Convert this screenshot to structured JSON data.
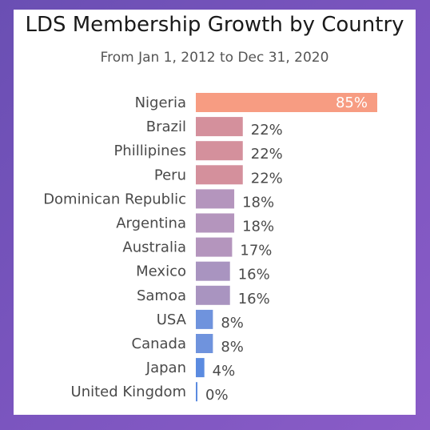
{
  "chart_data": {
    "type": "bar",
    "orientation": "horizontal",
    "title": "LDS Membership Growth by Country",
    "subtitle": "From Jan 1, 2012 to Dec 31, 2020",
    "categories": [
      "Nigeria",
      "Brazil",
      "Phillipines",
      "Peru",
      "Dominican Republic",
      "Argentina",
      "Australia",
      "Mexico",
      "Samoa",
      "USA",
      "Canada",
      "Japan",
      "United Kingdom"
    ],
    "values": [
      85,
      22,
      22,
      22,
      18,
      18,
      17,
      16,
      16,
      8,
      8,
      4,
      0
    ],
    "value_labels": [
      "85%",
      "22%",
      "22%",
      "22%",
      "18%",
      "18%",
      "17%",
      "16%",
      "16%",
      "8%",
      "8%",
      "4%",
      "0%"
    ],
    "unit": "%",
    "xlim": [
      0,
      85
    ],
    "grid": false,
    "legend": "none",
    "colors": [
      "#f79c82",
      "#d4909c",
      "#d4909c",
      "#d4909c",
      "#b495bd",
      "#b495bd",
      "#b495bd",
      "#a994c0",
      "#a994c0",
      "#6f93dd",
      "#6f93dd",
      "#5b8be0",
      "#5b8be0"
    ]
  }
}
